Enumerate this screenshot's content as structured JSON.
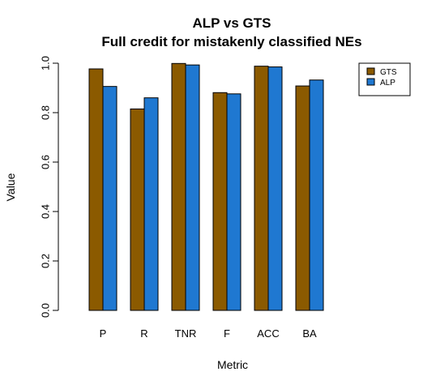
{
  "chart_data": {
    "type": "bar",
    "title": "ALP vs GTS",
    "subtitle": "Full credit for mistakenly classified NEs",
    "xlabel": "Metric",
    "ylabel": "Value",
    "categories": [
      "P",
      "R",
      "TNR",
      "F",
      "ACC",
      "BA"
    ],
    "series": [
      {
        "name": "GTS",
        "color": "#8B5A00",
        "values": [
          0.977,
          0.815,
          0.999,
          0.881,
          0.988,
          0.908
        ]
      },
      {
        "name": "ALP",
        "color": "#1F78D1",
        "values": [
          0.906,
          0.86,
          0.993,
          0.876,
          0.985,
          0.932
        ]
      }
    ],
    "ylim": [
      0,
      1
    ],
    "yticks": [
      "0.0",
      "0.2",
      "0.4",
      "0.6",
      "0.8",
      "1.0"
    ],
    "grid": false,
    "legend_position": "top-right"
  }
}
